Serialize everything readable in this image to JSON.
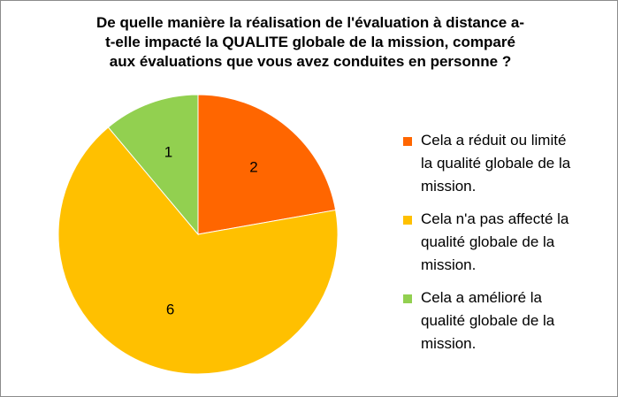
{
  "chart_data": {
    "type": "pie",
    "title": "De quelle manière la réalisation de l'évaluation à distance a-t-elle impacté la QUALITE globale de la mission, comparé aux évaluations que vous avez conduites en personne ?",
    "title_lines": [
      "De quelle manière la réalisation de l'évaluation à distance a-",
      "t-elle impacté la QUALITE globale de la mission, comparé",
      "aux évaluations que vous avez conduites en personne ?"
    ],
    "categories": [
      "Cela a réduit ou limité la qualité globale de la mission.",
      "Cela n'a pas affecté la qualité globale de la mission.",
      "Cela a amélioré la qualité globale de la mission."
    ],
    "values": [
      2,
      6,
      1
    ],
    "data_labels": [
      "2",
      "6",
      "1"
    ],
    "colors": [
      "#FF6600",
      "#FFC000",
      "#92D050"
    ],
    "start_angle_deg": 0,
    "direction": "clockwise",
    "legend_position": "right"
  },
  "legend": {
    "items": [
      {
        "lines": [
          "Cela a réduit ou limité",
          "la qualité globale de la",
          "mission."
        ],
        "color": "#FF6600"
      },
      {
        "lines": [
          "Cela n'a pas affecté la",
          "qualité globale de la",
          "mission."
        ],
        "color": "#FFC000"
      },
      {
        "lines": [
          "Cela a amélioré la",
          "qualité globale de la",
          "mission."
        ],
        "color": "#92D050"
      }
    ]
  }
}
